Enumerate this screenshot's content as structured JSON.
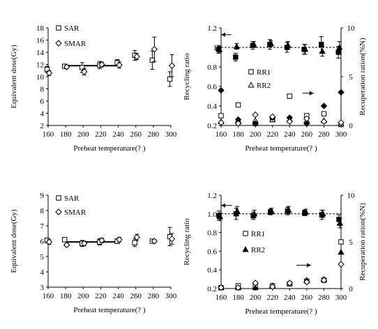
{
  "chart_data": [
    {
      "id": "a",
      "type": "scatter",
      "xlabel": "Preheat temperature(? )",
      "ylabel": "Equivalent dose(Gy)",
      "xlim": [
        160,
        300
      ],
      "ylim": [
        2,
        18
      ],
      "xticks": [
        160,
        180,
        200,
        220,
        240,
        260,
        280,
        300
      ],
      "yticks": [
        2,
        4,
        6,
        8,
        10,
        12,
        14,
        16,
        18
      ],
      "legend": "top-left",
      "plateau": {
        "x": [
          180,
          240
        ],
        "y": 11.8
      },
      "series": [
        {
          "name": "SAR",
          "marker": "square",
          "x": [
            160,
            180,
            200,
            220,
            240,
            260,
            280,
            300
          ],
          "y": [
            11.2,
            11.7,
            11.5,
            11.9,
            12.3,
            13.5,
            12.7,
            9.6
          ],
          "err": [
            0.5,
            0.3,
            0.8,
            0.6,
            0.5,
            0.8,
            1.5,
            1.2
          ]
        },
        {
          "name": "SMAR",
          "marker": "diamond",
          "x": [
            160,
            180,
            200,
            220,
            240,
            260,
            280,
            300
          ],
          "y": [
            10.6,
            11.6,
            10.8,
            12.0,
            11.9,
            13.3,
            14.5,
            11.8
          ],
          "err": [
            0.4,
            0.3,
            0.5,
            0.4,
            0.5,
            0.5,
            2.0,
            1.8
          ]
        }
      ]
    },
    {
      "id": "b",
      "type": "scatter",
      "xlabel": "Preheat temperature(? )",
      "ylabel": "Recycling ratio",
      "y2label": "Recuperation ration(%N)",
      "xlim": [
        160,
        300
      ],
      "ylim": [
        0.2,
        1.2
      ],
      "y2lim": [
        0,
        10
      ],
      "xticks": [
        160,
        180,
        200,
        220,
        240,
        260,
        280,
        300
      ],
      "yticks": [
        0.2,
        0.4,
        0.6,
        0.8,
        1.0,
        1.2
      ],
      "ytick_labels": [
        "0.2",
        "0.4",
        "0.6",
        "0.8",
        "1",
        "1.2"
      ],
      "y2ticks": [
        0,
        5,
        10
      ],
      "ref_line": 1.0,
      "legend": "center-right",
      "series": [
        {
          "name": "",
          "marker": "filled-square",
          "axis": "left",
          "x": [
            160,
            180,
            200,
            220,
            240,
            260,
            280,
            300
          ],
          "y": [
            0.98,
            0.9,
            1.02,
            1.03,
            1.0,
            0.98,
            1.03,
            0.95
          ],
          "err": [
            0.04,
            0.04,
            0.04,
            0.05,
            0.05,
            0.05,
            0.08,
            0.06
          ]
        },
        {
          "name": "",
          "marker": "filled-triangle",
          "axis": "left",
          "x": [
            160,
            180,
            200,
            220,
            240,
            260,
            280,
            300
          ],
          "y": [
            0.98,
            1.01,
            1.03,
            1.04,
            1.02,
            0.98,
            0.96,
            1.0
          ],
          "err": [
            0.03,
            0.03,
            0.03,
            0.03,
            0.04,
            0.05,
            0.05,
            0.06
          ]
        },
        {
          "name": "RR1",
          "marker": "square",
          "axis": "right",
          "x": [
            160,
            180,
            200,
            220,
            240,
            260,
            280,
            300
          ],
          "y": [
            1.0,
            2.1,
            0.2,
            0.6,
            3.0,
            1.0,
            1.2,
            0.1
          ]
        },
        {
          "name": "RR2",
          "marker": "triangle",
          "axis": "right",
          "x": [
            160,
            180,
            200,
            220,
            240,
            260,
            280,
            300
          ],
          "y": [
            0.4,
            0.5,
            0.5,
            0.6,
            0.6,
            0.5,
            0.5,
            0.2
          ]
        },
        {
          "name": "",
          "marker": "filled-diamond",
          "axis": "right",
          "x": [
            160,
            180,
            200,
            220,
            240,
            260,
            280,
            300
          ],
          "y": [
            3.6,
            0.6,
            0.2,
            0.8,
            0.8,
            0.2,
            2.0,
            3.4
          ]
        },
        {
          "name": "",
          "marker": "diamond",
          "axis": "right",
          "x": [
            160,
            180,
            200,
            220,
            240,
            260,
            280,
            300
          ],
          "y": [
            0.3,
            0.2,
            1.1,
            0.9,
            0.4,
            0.7,
            0.4,
            0.3
          ]
        }
      ],
      "arrows": [
        {
          "direction": "left",
          "x": [
            160,
            172
          ],
          "y": 1.13,
          "axis": "left"
        },
        {
          "direction": "right",
          "x": [
            255,
            268
          ],
          "y": 3.3,
          "axis": "right"
        }
      ]
    },
    {
      "id": "c",
      "type": "scatter",
      "xlabel": "Preheat temperature(? )",
      "ylabel": "Equivalent dose(Gy)",
      "xlim": [
        160,
        300
      ],
      "ylim": [
        3,
        9
      ],
      "xticks": [
        160,
        180,
        200,
        220,
        240,
        260,
        280,
        300
      ],
      "yticks": [
        3,
        4,
        5,
        6,
        7,
        8,
        9
      ],
      "legend": "top-left",
      "plateau": {
        "x": [
          180,
          240
        ],
        "y": 5.95
      },
      "series": [
        {
          "name": "SAR",
          "marker": "square",
          "x": [
            160,
            180,
            200,
            220,
            240,
            260,
            280,
            300
          ],
          "y": [
            6.05,
            6.1,
            5.85,
            5.95,
            6.0,
            5.9,
            6.0,
            6.3
          ],
          "err": [
            0.15,
            0.1,
            0.2,
            0.2,
            0.15,
            0.25,
            0.1,
            0.6
          ]
        },
        {
          "name": "SMAR",
          "marker": "diamond",
          "x": [
            160,
            180,
            200,
            220,
            240,
            260,
            280,
            300
          ],
          "y": [
            5.95,
            5.75,
            5.85,
            6.05,
            6.1,
            6.25,
            6.0,
            6.15
          ],
          "err": [
            0.15,
            0.1,
            0.15,
            0.15,
            0.15,
            0.2,
            0.1,
            0.35
          ]
        }
      ]
    },
    {
      "id": "d",
      "type": "scatter",
      "xlabel": "Preheat temperature(? )",
      "ylabel": "Recycling ratio",
      "y2label": "Recuperation ration(%N)",
      "xlim": [
        160,
        300
      ],
      "ylim": [
        0.2,
        1.2
      ],
      "y2lim": [
        0,
        10
      ],
      "xticks": [
        160,
        180,
        200,
        220,
        240,
        260,
        280,
        300
      ],
      "yticks": [
        0.2,
        0.4,
        0.6,
        0.8,
        1.0,
        1.2
      ],
      "ytick_labels": [
        "0.2",
        "0.4",
        "0.6",
        "0.8",
        "1.0",
        "1.2"
      ],
      "y2ticks": [
        0,
        5,
        10
      ],
      "ref_line": 1.0,
      "legend": "center-left",
      "series": [
        {
          "name": "",
          "marker": "filled-square",
          "axis": "left",
          "x": [
            160,
            180,
            200,
            220,
            240,
            260,
            280,
            300
          ],
          "y": [
            0.98,
            1.0,
            0.98,
            1.02,
            1.03,
            1.01,
            0.99,
            0.94
          ],
          "err": [
            0.05,
            0.06,
            0.04,
            0.03,
            0.04,
            0.03,
            0.05,
            0.05
          ]
        },
        {
          "name": "",
          "marker": "filled-triangle",
          "axis": "left",
          "x": [
            160,
            180,
            200,
            220,
            240,
            260,
            280,
            300
          ],
          "y": [
            0.97,
            1.03,
            1.0,
            1.03,
            1.04,
            1.02,
            1.0,
            0.9
          ],
          "err": [
            0.04,
            0.05,
            0.04,
            0.03,
            0.04,
            0.03,
            0.04,
            0.05
          ]
        },
        {
          "name": "RR1",
          "marker": "square",
          "axis": "right",
          "x": [
            160,
            180,
            200,
            220,
            240,
            260,
            280,
            300
          ],
          "y": [
            0.1,
            0.3,
            0.2,
            0.3,
            0.5,
            0.8,
            0.9,
            5.0
          ]
        },
        {
          "name": "RR2",
          "marker": "filled-triangle",
          "axis": "right",
          "x": [
            160,
            180,
            200,
            220,
            240,
            260,
            280,
            300
          ],
          "y": [
            0.1,
            0.1,
            0.1,
            0.3,
            0.6,
            0.9,
            1.0,
            3.9
          ]
        },
        {
          "name": "",
          "marker": "diamond",
          "axis": "right",
          "x": [
            160,
            180,
            200,
            220,
            240,
            260,
            280,
            300
          ],
          "y": [
            0.1,
            0.1,
            0.6,
            0.2,
            0.6,
            0.7,
            0.9,
            2.6
          ]
        }
      ],
      "arrows": [
        {
          "direction": "left",
          "x": [
            160,
            173
          ],
          "y": 1.09,
          "axis": "left"
        },
        {
          "direction": "right",
          "x": [
            248,
            265
          ],
          "y": 2.5,
          "axis": "right"
        }
      ]
    }
  ]
}
